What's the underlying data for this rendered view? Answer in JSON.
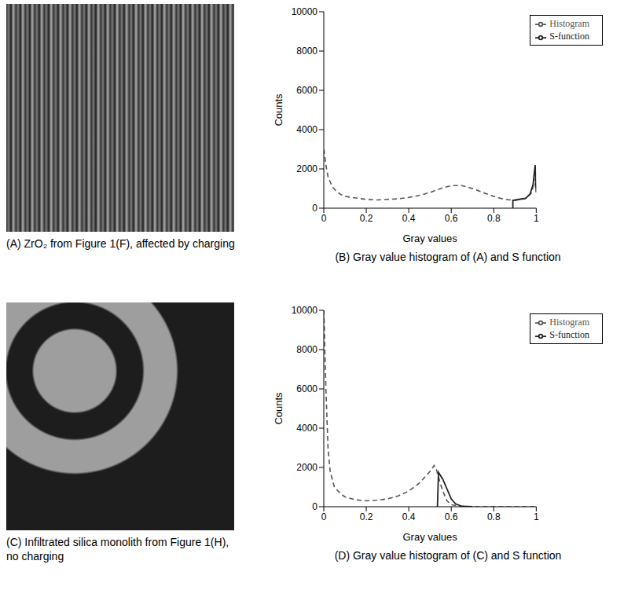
{
  "chart_data": [
    {
      "type": "line",
      "title": "(B) Gray value histogram of (A) and S function",
      "x_label": "Gray values",
      "y_label": "Counts",
      "xlim": [
        0,
        1
      ],
      "xticks": [
        0,
        0.2,
        0.4,
        0.6,
        0.8,
        1
      ],
      "ylim": [
        0,
        10000
      ],
      "yticks": [
        0,
        2000,
        4000,
        6000,
        8000,
        10000
      ],
      "legend": "upper right",
      "series": [
        {
          "name": "Histogram",
          "color": "#555555",
          "line_style": "dashed",
          "x": [
            0,
            0.01,
            0.02,
            0.04,
            0.06,
            0.08,
            0.1,
            0.15,
            0.2,
            0.25,
            0.3,
            0.35,
            0.4,
            0.45,
            0.5,
            0.55,
            0.6,
            0.65,
            0.7,
            0.75,
            0.8,
            0.85,
            0.9,
            0.95,
            0.98,
            0.99,
            1
          ],
          "values": [
            3000,
            2200,
            1600,
            1100,
            850,
            700,
            600,
            520,
            450,
            420,
            450,
            480,
            550,
            650,
            800,
            1000,
            1150,
            1150,
            1000,
            800,
            600,
            450,
            400,
            500,
            800,
            1500,
            900
          ]
        },
        {
          "name": "S-function",
          "color": "#222222",
          "line_style": "solid",
          "x": [
            0.89,
            0.89,
            0.92,
            0.95,
            0.97,
            0.985,
            0.995,
            1
          ],
          "values": [
            0,
            400,
            450,
            500,
            700,
            1200,
            2200,
            800
          ]
        }
      ]
    },
    {
      "type": "line",
      "title": "(D) Gray value histogram of (C) and S function",
      "x_label": "Gray values",
      "y_label": "Counts",
      "xlim": [
        0,
        1
      ],
      "xticks": [
        0,
        0.2,
        0.4,
        0.6,
        0.8,
        1
      ],
      "ylim": [
        0,
        10000
      ],
      "yticks": [
        0,
        2000,
        4000,
        6000,
        8000,
        10000
      ],
      "legend": "upper right",
      "series": [
        {
          "name": "Histogram",
          "color": "#555555",
          "line_style": "dashed",
          "x": [
            0,
            0.01,
            0.02,
            0.03,
            0.05,
            0.08,
            0.1,
            0.15,
            0.2,
            0.25,
            0.3,
            0.35,
            0.4,
            0.45,
            0.5,
            0.52,
            0.53,
            0.54,
            0.56,
            0.58,
            0.6,
            0.65,
            0.7,
            0.8,
            1
          ],
          "values": [
            10000,
            6000,
            3000,
            1800,
            1000,
            650,
            500,
            350,
            300,
            330,
            400,
            550,
            800,
            1200,
            1800,
            2100,
            1900,
            1500,
            800,
            300,
            100,
            20,
            0,
            0,
            0
          ]
        },
        {
          "name": "S-function",
          "color": "#222222",
          "line_style": "solid",
          "x": [
            0.535,
            0.54,
            0.56,
            0.58,
            0.6,
            0.62,
            0.65,
            0.7
          ],
          "values": [
            0,
            1750,
            1400,
            900,
            400,
            150,
            20,
            0
          ]
        }
      ]
    }
  ],
  "images": [
    {
      "caption": "(A) ZrO₂ from Figure 1(F), affected by charging"
    },
    {
      "caption": "(C) Infiltrated silica monolith from Figure 1(H), no charging"
    }
  ]
}
